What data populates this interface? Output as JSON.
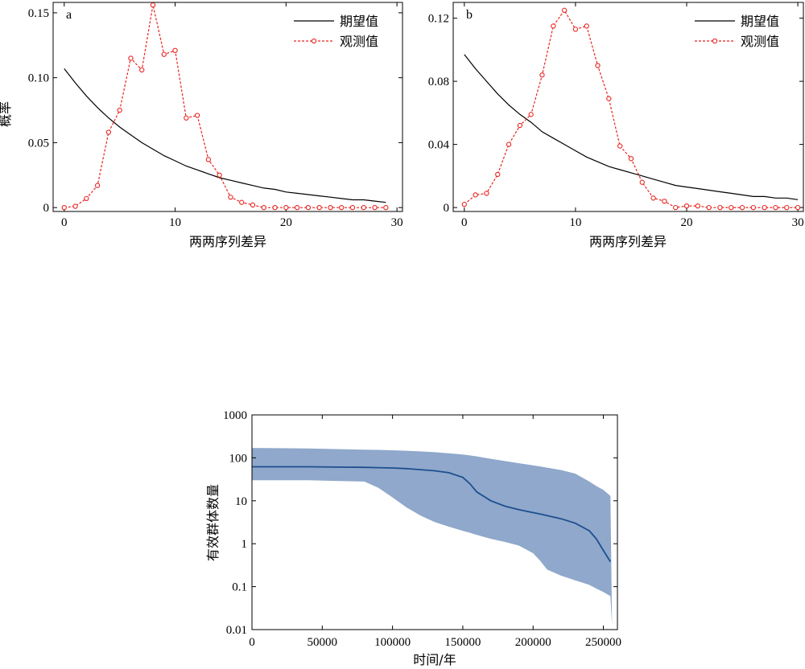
{
  "chart_data": [
    {
      "type": "line",
      "panel_label": "a",
      "xlabel": "两两序列差异",
      "ylabel": "概率",
      "xlim": [
        -1,
        30.5
      ],
      "ylim": [
        -0.003,
        0.158
      ],
      "xticks": [
        0,
        10,
        20,
        30
      ],
      "xtick_labels": [
        "0",
        "10",
        "20",
        "30"
      ],
      "yticks": [
        0,
        0.05,
        0.1,
        0.15
      ],
      "ytick_labels": [
        "0",
        "0.05",
        "0.10",
        "0.15"
      ],
      "legend_position": "top-right",
      "series": [
        {
          "name": "期望值",
          "style": "solid",
          "color": "#000000",
          "x": [
            0,
            1,
            2,
            3,
            4,
            5,
            6,
            7,
            8,
            9,
            10,
            11,
            12,
            13,
            14,
            15,
            16,
            17,
            18,
            19,
            20,
            21,
            22,
            23,
            24,
            25,
            26,
            27,
            28,
            29
          ],
          "values": [
            0.107,
            0.096,
            0.086,
            0.077,
            0.069,
            0.062,
            0.056,
            0.05,
            0.045,
            0.04,
            0.036,
            0.032,
            0.029,
            0.026,
            0.023,
            0.021,
            0.019,
            0.017,
            0.015,
            0.014,
            0.012,
            0.011,
            0.01,
            0.009,
            0.008,
            0.007,
            0.006,
            0.006,
            0.005,
            0.004
          ]
        },
        {
          "name": "观测值",
          "style": "dashed-circle",
          "color": "#e8231f",
          "x": [
            0,
            1,
            2,
            3,
            4,
            5,
            6,
            7,
            8,
            9,
            10,
            11,
            12,
            13,
            14,
            15,
            16,
            17,
            18,
            19,
            20,
            21,
            22,
            23,
            24,
            25,
            26,
            27,
            28,
            29
          ],
          "values": [
            0.0,
            0.001,
            0.007,
            0.017,
            0.058,
            0.075,
            0.115,
            0.106,
            0.156,
            0.118,
            0.121,
            0.069,
            0.071,
            0.037,
            0.025,
            0.008,
            0.004,
            0.002,
            0.0,
            0.0,
            0.0,
            0.0,
            0.0,
            0.0,
            0.0,
            0.0,
            0.0,
            0.0,
            0.0,
            0.0
          ]
        }
      ]
    },
    {
      "type": "line",
      "panel_label": "b",
      "xlabel": "两两序列差异",
      "ylabel": "",
      "xlim": [
        -1,
        30.5
      ],
      "ylim": [
        -0.0025,
        0.13
      ],
      "xticks": [
        0,
        10,
        20,
        30
      ],
      "xtick_labels": [
        "0",
        "10",
        "20",
        "30"
      ],
      "yticks": [
        0,
        0.04,
        0.08,
        0.12
      ],
      "ytick_labels": [
        "0",
        "0.04",
        "0.08",
        "0.12"
      ],
      "legend_position": "top-right",
      "series": [
        {
          "name": "期望值",
          "style": "solid",
          "color": "#000000",
          "x": [
            0,
            1,
            2,
            3,
            4,
            5,
            6,
            7,
            8,
            9,
            10,
            11,
            12,
            13,
            14,
            15,
            16,
            17,
            18,
            19,
            20,
            21,
            22,
            23,
            24,
            25,
            26,
            27,
            28,
            29,
            30
          ],
          "values": [
            0.097,
            0.088,
            0.08,
            0.072,
            0.065,
            0.059,
            0.054,
            0.048,
            0.044,
            0.04,
            0.036,
            0.032,
            0.029,
            0.026,
            0.024,
            0.022,
            0.02,
            0.018,
            0.016,
            0.014,
            0.013,
            0.012,
            0.011,
            0.01,
            0.009,
            0.008,
            0.007,
            0.007,
            0.006,
            0.006,
            0.005
          ]
        },
        {
          "name": "观测值",
          "style": "dashed-circle",
          "color": "#e8231f",
          "x": [
            0,
            1,
            2,
            3,
            4,
            5,
            6,
            7,
            8,
            9,
            10,
            11,
            12,
            13,
            14,
            15,
            16,
            17,
            18,
            19,
            20,
            21,
            22,
            23,
            24,
            25,
            26,
            27,
            28,
            29,
            30
          ],
          "values": [
            0.002,
            0.008,
            0.009,
            0.021,
            0.04,
            0.052,
            0.059,
            0.084,
            0.115,
            0.125,
            0.113,
            0.115,
            0.09,
            0.069,
            0.039,
            0.031,
            0.016,
            0.006,
            0.004,
            0.0,
            0.001,
            0.001,
            0.0,
            0.0,
            0.0,
            0.0,
            0.0,
            0.0,
            0.0,
            0.0,
            0.0
          ]
        }
      ]
    },
    {
      "type": "area",
      "xlabel": "时间/年",
      "ylabel": "有效群体数量",
      "yscale": "log",
      "xlim": [
        0,
        260000
      ],
      "ylim": [
        0.01,
        1000
      ],
      "xticks": [
        0,
        50000,
        100000,
        150000,
        200000,
        250000
      ],
      "xtick_labels": [
        "0",
        "50000",
        "100000",
        "150000",
        "200000",
        "250000"
      ],
      "yticks": [
        0.01,
        0.1,
        1,
        10,
        100,
        1000
      ],
      "ytick_labels": [
        "0.01",
        "0.1",
        "1",
        "10",
        "100",
        "1000"
      ],
      "fill_color": "#8fa8cb",
      "line_color": "#1e4f8f",
      "x": [
        0,
        20000,
        40000,
        60000,
        80000,
        90000,
        100000,
        110000,
        120000,
        130000,
        140000,
        150000,
        155000,
        160000,
        170000,
        180000,
        190000,
        200000,
        205000,
        210000,
        220000,
        230000,
        240000,
        245000,
        250000,
        255000
      ],
      "median": [
        62,
        62,
        62,
        61,
        60,
        59,
        58,
        56,
        53,
        50,
        45,
        35,
        25,
        16,
        10,
        7.5,
        6.2,
        5.3,
        4.9,
        4.5,
        3.8,
        3.0,
        2.0,
        1.3,
        0.7,
        0.38
      ],
      "upper": [
        170,
        168,
        165,
        160,
        155,
        153,
        150,
        146,
        141,
        135,
        128,
        120,
        114,
        108,
        95,
        84,
        75,
        67,
        63,
        59,
        52,
        43,
        28,
        22,
        18,
        13
      ],
      "lower": [
        30,
        30,
        30,
        29,
        28,
        20,
        12,
        7,
        4.5,
        3.2,
        2.5,
        2.0,
        1.8,
        1.6,
        1.3,
        1.1,
        0.9,
        0.6,
        0.4,
        0.25,
        0.18,
        0.14,
        0.11,
        0.09,
        0.075,
        0.06
      ]
    }
  ]
}
